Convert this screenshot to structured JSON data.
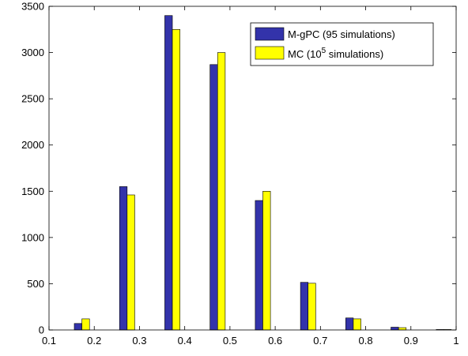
{
  "chart_data": {
    "type": "bar",
    "x": [
      0.2,
      0.3,
      0.4,
      0.5,
      0.6,
      0.7,
      0.8,
      0.9,
      1.0
    ],
    "series": [
      {
        "name": "M-gPC (95 simulations)",
        "color": "#3333aa",
        "values": [
          70,
          1550,
          3400,
          2870,
          1400,
          515,
          130,
          30,
          5
        ]
      },
      {
        "name": "MC (10",
        "name_superscript": "5",
        "name_suffix": " simulations)",
        "color": "#ffff00",
        "values": [
          120,
          1460,
          3250,
          3000,
          1500,
          505,
          120,
          25,
          5
        ]
      }
    ],
    "xlim": [
      0.1,
      1.0
    ],
    "ylim": [
      0,
      3500
    ],
    "xticks": [
      "0.1",
      "0.2",
      "0.3",
      "0.4",
      "0.5",
      "0.6",
      "0.7",
      "0.8",
      "0.9",
      "1"
    ],
    "yticks": [
      "0",
      "500",
      "1000",
      "1500",
      "2000",
      "2500",
      "3000",
      "3500"
    ],
    "grid": false,
    "legend_position": "top-right"
  }
}
